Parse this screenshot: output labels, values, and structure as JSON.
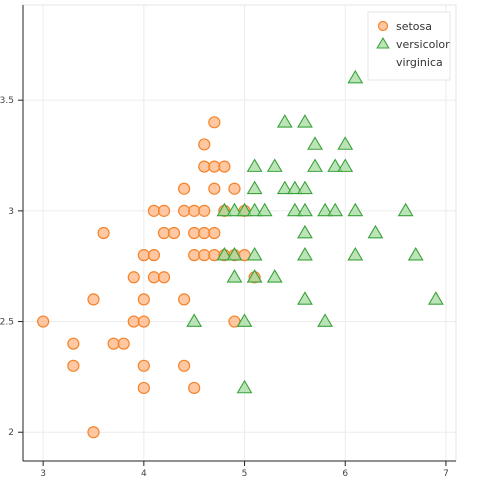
{
  "chart_data": {
    "type": "scatter",
    "title": "",
    "xlabel": "",
    "ylabel": "",
    "xlim": [
      2.8,
      7.1
    ],
    "ylim": [
      1.87,
      3.93
    ],
    "grid": true,
    "legend_position": "top-right",
    "x_ticks": [
      {
        "value": 3,
        "label": "3"
      },
      {
        "value": 4,
        "label": "4"
      },
      {
        "value": 5,
        "label": "5"
      },
      {
        "value": 6,
        "label": "6"
      },
      {
        "value": 7,
        "label": "7"
      }
    ],
    "y_ticks": [
      {
        "value": 2,
        "label": "2"
      },
      {
        "value": 2.5,
        "label": "2.5"
      },
      {
        "value": 3,
        "label": "3"
      },
      {
        "value": 3.5,
        "label": "3.5"
      }
    ],
    "series": [
      {
        "name": "setosa",
        "marker": "circle",
        "fill": "#ffb07a",
        "stroke": "#f5832a",
        "points": [
          [
            4.7,
            3.4
          ],
          [
            4.6,
            3.3
          ],
          [
            4.6,
            3.2
          ],
          [
            4.7,
            3.2
          ],
          [
            4.8,
            3.2
          ],
          [
            4.4,
            3.1
          ],
          [
            4.7,
            3.1
          ],
          [
            4.9,
            3.1
          ],
          [
            4.1,
            3.0
          ],
          [
            4.2,
            3.0
          ],
          [
            4.4,
            3.0
          ],
          [
            4.5,
            3.0
          ],
          [
            4.6,
            3.0
          ],
          [
            4.8,
            3.0
          ],
          [
            5.0,
            3.0
          ],
          [
            3.6,
            2.9
          ],
          [
            4.2,
            2.9
          ],
          [
            4.3,
            2.9
          ],
          [
            4.5,
            2.9
          ],
          [
            4.6,
            2.9
          ],
          [
            4.7,
            2.9
          ],
          [
            4.0,
            2.8
          ],
          [
            4.1,
            2.8
          ],
          [
            4.5,
            2.8
          ],
          [
            4.6,
            2.8
          ],
          [
            4.7,
            2.8
          ],
          [
            4.8,
            2.8
          ],
          [
            4.9,
            2.8
          ],
          [
            5.0,
            2.8
          ],
          [
            3.9,
            2.7
          ],
          [
            4.1,
            2.7
          ],
          [
            4.2,
            2.7
          ],
          [
            5.1,
            2.7
          ],
          [
            3.5,
            2.6
          ],
          [
            4.0,
            2.6
          ],
          [
            4.4,
            2.6
          ],
          [
            3.0,
            2.5
          ],
          [
            3.9,
            2.5
          ],
          [
            4.0,
            2.5
          ],
          [
            4.9,
            2.5
          ],
          [
            3.3,
            2.4
          ],
          [
            3.7,
            2.4
          ],
          [
            3.8,
            2.4
          ],
          [
            3.3,
            2.3
          ],
          [
            4.0,
            2.3
          ],
          [
            4.4,
            2.3
          ],
          [
            4.0,
            2.2
          ],
          [
            4.5,
            2.2
          ],
          [
            3.5,
            2.0
          ]
        ]
      },
      {
        "name": "versicolor",
        "marker": "triangle",
        "fill": "#9fd99a",
        "stroke": "#39a33a",
        "points": [
          [
            6.1,
            3.6
          ],
          [
            5.4,
            3.4
          ],
          [
            5.6,
            3.4
          ],
          [
            5.7,
            3.3
          ],
          [
            6.0,
            3.3
          ],
          [
            5.1,
            3.2
          ],
          [
            5.3,
            3.2
          ],
          [
            5.7,
            3.2
          ],
          [
            5.9,
            3.2
          ],
          [
            6.0,
            3.2
          ],
          [
            5.1,
            3.1
          ],
          [
            5.4,
            3.1
          ],
          [
            5.5,
            3.1
          ],
          [
            5.6,
            3.1
          ],
          [
            4.8,
            3.0
          ],
          [
            4.9,
            3.0
          ],
          [
            5.0,
            3.0
          ],
          [
            5.1,
            3.0
          ],
          [
            5.2,
            3.0
          ],
          [
            5.5,
            3.0
          ],
          [
            5.6,
            3.0
          ],
          [
            5.8,
            3.0
          ],
          [
            5.9,
            3.0
          ],
          [
            6.1,
            3.0
          ],
          [
            6.6,
            3.0
          ],
          [
            5.6,
            2.9
          ],
          [
            6.3,
            2.9
          ],
          [
            4.8,
            2.8
          ],
          [
            4.9,
            2.8
          ],
          [
            5.1,
            2.8
          ],
          [
            5.6,
            2.8
          ],
          [
            6.1,
            2.8
          ],
          [
            6.7,
            2.8
          ],
          [
            4.9,
            2.7
          ],
          [
            5.1,
            2.7
          ],
          [
            5.3,
            2.7
          ],
          [
            5.6,
            2.6
          ],
          [
            6.9,
            2.6
          ],
          [
            4.5,
            2.5
          ],
          [
            5.0,
            2.5
          ],
          [
            5.8,
            2.5
          ],
          [
            5.0,
            2.2
          ]
        ]
      },
      {
        "name": "virginica",
        "marker": "none",
        "fill": "#ffffff",
        "stroke": "#ffffff",
        "points": []
      }
    ]
  }
}
